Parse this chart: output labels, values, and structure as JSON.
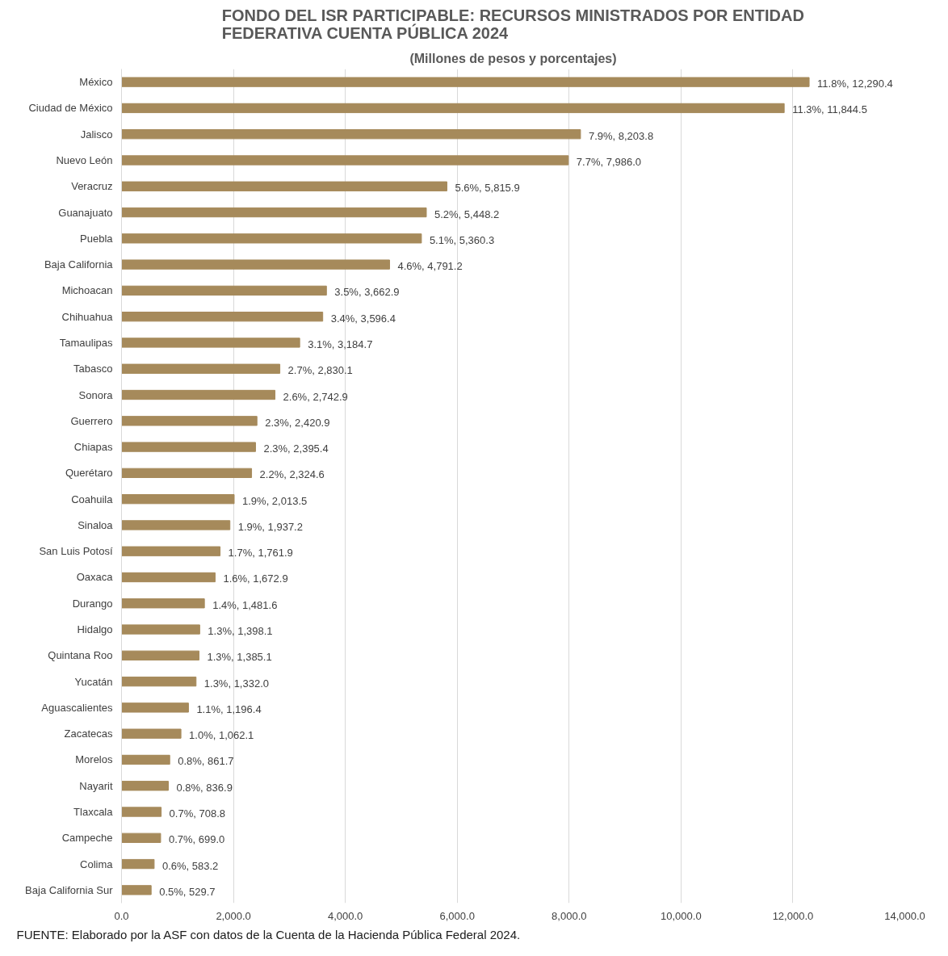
{
  "chart_data": {
    "type": "bar",
    "orientation": "horizontal",
    "title": "FONDO DEL ISR PARTICIPABLE: RECURSOS MINISTRADOS POR ENTIDAD FEDERATIVA CUENTA PÚBLICA 2024",
    "subtitle": "(Millones de pesos y porcentajes)",
    "categories": [
      "México",
      "Ciudad de México",
      "Jalisco",
      "Nuevo León",
      "Veracruz",
      "Guanajuato",
      "Puebla",
      "Baja California",
      "Michoacan",
      "Chihuahua",
      "Tamaulipas",
      "Tabasco",
      "Sonora",
      "Guerrero",
      "Chiapas",
      "Querétaro",
      "Coahuila",
      "Sinaloa",
      "San Luis Potosí",
      "Oaxaca",
      "Durango",
      "Hidalgo",
      "Quintana Roo",
      "Yucatán",
      "Aguascalientes",
      "Zacatecas",
      "Morelos",
      "Nayarit",
      "Tlaxcala",
      "Campeche",
      "Colima",
      "Baja California Sur"
    ],
    "values": [
      12290.4,
      11844.5,
      8203.8,
      7986.0,
      5815.9,
      5448.2,
      5360.3,
      4791.2,
      3662.9,
      3596.4,
      3184.7,
      2830.1,
      2742.9,
      2420.9,
      2395.4,
      2324.6,
      2013.5,
      1937.2,
      1761.9,
      1672.9,
      1481.6,
      1398.1,
      1385.1,
      1332.0,
      1196.4,
      1062.1,
      861.7,
      836.9,
      708.8,
      699.0,
      583.2,
      529.7
    ],
    "value_labels": [
      "11.8%, 12,290.4",
      "11.3%, 11,844.5",
      "7.9%, 8,203.8",
      "7.7%, 7,986.0",
      "5.6%, 5,815.9",
      "5.2%, 5,448.2",
      "5.1%, 5,360.3",
      "4.6%, 4,791.2",
      "3.5%, 3,662.9",
      "3.4%, 3,596.4",
      "3.1%, 3,184.7",
      "2.7%, 2,830.1",
      "2.6%, 2,742.9",
      "2.3%, 2,420.9",
      "2.3%, 2,395.4",
      "2.2%, 2,324.6",
      "1.9%, 2,013.5",
      "1.9%, 1,937.2",
      "1.7%, 1,761.9",
      "1.6%, 1,672.9",
      "1.4%, 1,481.6",
      "1.3%, 1,398.1",
      "1.3%, 1,385.1",
      "1.3%, 1,332.0",
      "1.1%, 1,196.4",
      "1.0%, 1,062.1",
      "0.8%, 861.7",
      "0.8%, 836.9",
      "0.7%, 708.8",
      "0.7%, 699.0",
      "0.6%, 583.2",
      "0.5%, 529.7"
    ],
    "color": "#a68a5b",
    "xlim": [
      0,
      14000
    ],
    "xticks": [
      {
        "value": 0,
        "label": "0.0"
      },
      {
        "value": 2000,
        "label": "2,000.0"
      },
      {
        "value": 4000,
        "label": "4,000.0"
      },
      {
        "value": 6000,
        "label": "6,000.0"
      },
      {
        "value": 8000,
        "label": "8,000.0"
      },
      {
        "value": 10000,
        "label": "10,000.0"
      },
      {
        "value": 12000,
        "label": "12,000.0"
      },
      {
        "value": 14000,
        "label": "14,000.0"
      }
    ],
    "grid": "x",
    "annotations": [
      "FUENTE: Elaborado por la ASF con datos de la Cuenta de la Hacienda Pública Federal 2024."
    ]
  }
}
